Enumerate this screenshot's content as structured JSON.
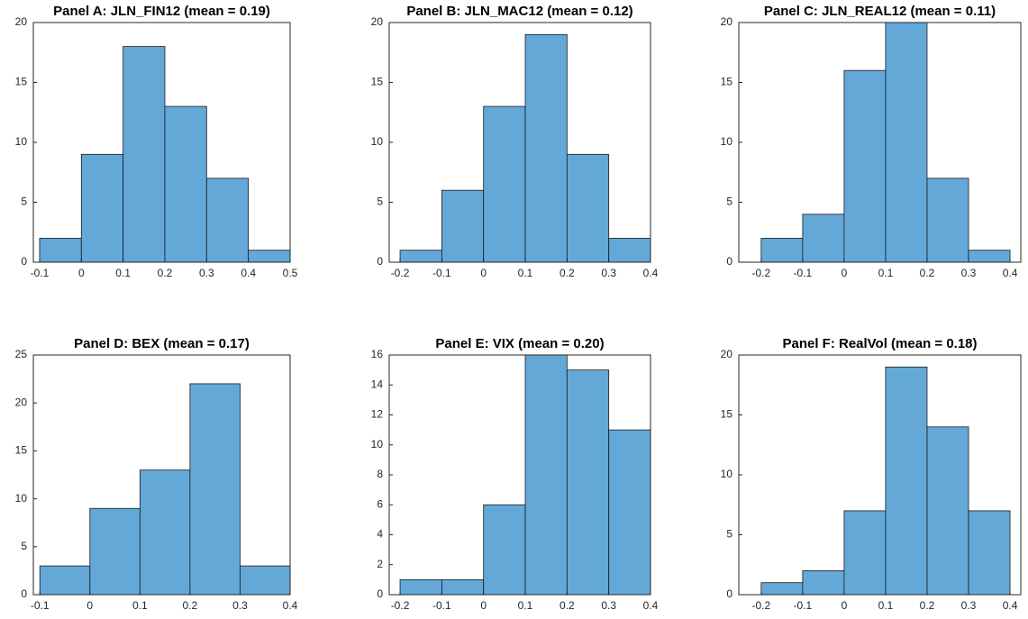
{
  "chart_data": [
    {
      "type": "histogram",
      "title": "Panel A: JLN_FIN12 (mean = 0.19)",
      "bins": [
        -0.1,
        0,
        0.1,
        0.2,
        0.3,
        0.4,
        0.5
      ],
      "values": [
        2,
        9,
        18,
        13,
        7,
        1
      ],
      "color": "#64a8d8",
      "xlim": [
        -0.115,
        0.5
      ],
      "ylim": [
        0,
        20
      ],
      "xticks": [
        -0.1,
        0,
        0.1,
        0.2,
        0.3,
        0.4,
        0.5
      ],
      "yticks": [
        0,
        5,
        10,
        15,
        20
      ]
    },
    {
      "type": "histogram",
      "title": "Panel B: JLN_MAC12 (mean = 0.12)",
      "bins": [
        -0.2,
        -0.1,
        0,
        0.1,
        0.2,
        0.3,
        0.4
      ],
      "values": [
        1,
        6,
        13,
        19,
        9,
        2
      ],
      "color": "#64a8d8",
      "xlim": [
        -0.226,
        0.4
      ],
      "ylim": [
        0,
        20
      ],
      "xticks": [
        -0.2,
        -0.1,
        0,
        0.1,
        0.2,
        0.3,
        0.4
      ],
      "yticks": [
        0,
        5,
        10,
        15,
        20
      ]
    },
    {
      "type": "histogram",
      "title": "Panel C: JLN_REAL12 (mean = 0.11)",
      "bins": [
        -0.2,
        -0.1,
        0,
        0.1,
        0.2,
        0.3,
        0.4
      ],
      "values": [
        2,
        4,
        16,
        20,
        7,
        1
      ],
      "color": "#64a8d8",
      "xlim": [
        -0.254,
        0.426
      ],
      "ylim": [
        0,
        20
      ],
      "xticks": [
        -0.2,
        -0.1,
        0,
        0.1,
        0.2,
        0.3,
        0.4
      ],
      "yticks": [
        0,
        5,
        10,
        15,
        20
      ]
    },
    {
      "type": "histogram",
      "title": "Panel D: BEX (mean = 0.17)",
      "bins": [
        -0.1,
        0,
        0.1,
        0.2,
        0.3,
        0.4
      ],
      "values": [
        3,
        9,
        13,
        22,
        3
      ],
      "color": "#64a8d8",
      "xlim": [
        -0.113,
        0.4
      ],
      "ylim": [
        0,
        25
      ],
      "xticks": [
        -0.1,
        0,
        0.1,
        0.2,
        0.3,
        0.4
      ],
      "yticks": [
        0,
        5,
        10,
        15,
        20,
        25
      ]
    },
    {
      "type": "histogram",
      "title": "Panel E: VIX (mean = 0.20)",
      "bins": [
        -0.2,
        -0.1,
        0,
        0.1,
        0.2,
        0.3,
        0.4
      ],
      "values": [
        1,
        1,
        6,
        16,
        15,
        11
      ],
      "color": "#64a8d8",
      "xlim": [
        -0.226,
        0.4
      ],
      "ylim": [
        0,
        16
      ],
      "xticks": [
        -0.2,
        -0.1,
        0,
        0.1,
        0.2,
        0.3,
        0.4
      ],
      "yticks": [
        0,
        2,
        4,
        6,
        8,
        10,
        12,
        14,
        16
      ]
    },
    {
      "type": "histogram",
      "title": "Panel F: RealVol (mean = 0.18)",
      "bins": [
        -0.2,
        -0.1,
        0,
        0.1,
        0.2,
        0.3,
        0.4
      ],
      "values": [
        1,
        2,
        7,
        19,
        14,
        7
      ],
      "color": "#64a8d8",
      "xlim": [
        -0.254,
        0.426
      ],
      "ylim": [
        0,
        20
      ],
      "xticks": [
        -0.2,
        -0.1,
        0,
        0.1,
        0.2,
        0.3,
        0.4
      ],
      "yticks": [
        0,
        5,
        10,
        15,
        20
      ]
    }
  ]
}
